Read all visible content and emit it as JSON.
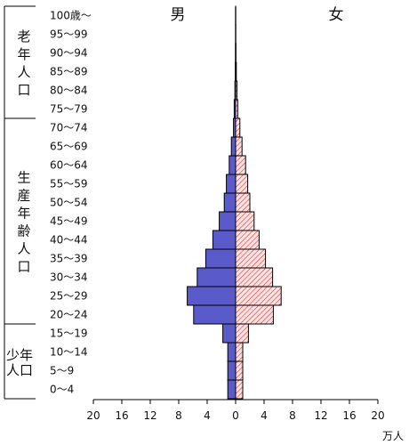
{
  "chart_data": {
    "type": "bar",
    "title": "",
    "header_left": "男",
    "header_right": "女",
    "xlabel": "万人",
    "x_ticks": [
      "20",
      "16",
      "12",
      "8",
      "4",
      "0",
      "4",
      "8",
      "12",
      "16",
      "20"
    ],
    "xlim": [
      -20,
      20
    ],
    "categories": [
      "0～4",
      "5～9",
      "10～14",
      "15～19",
      "20～24",
      "25～29",
      "30～34",
      "35～39",
      "40～44",
      "45～49",
      "50～54",
      "55～59",
      "60～64",
      "65～69",
      "70～74",
      "75～79",
      "80～84",
      "85～89",
      "90～94",
      "95～99",
      "100歳～"
    ],
    "series": [
      {
        "name": "男",
        "color": "#5a5acb",
        "values": [
          1.1,
          1.1,
          1.1,
          1.8,
          5.9,
          6.8,
          5.4,
          4.2,
          3.2,
          2.3,
          1.6,
          1.3,
          0.9,
          0.6,
          0.3,
          0.2,
          0.1,
          0.05,
          0.02,
          0.01,
          0.01
        ]
      },
      {
        "name": "女",
        "color": "#e06666",
        "values": [
          1.0,
          1.0,
          1.0,
          1.8,
          5.3,
          6.4,
          5.2,
          4.2,
          3.3,
          2.6,
          2.0,
          1.7,
          1.4,
          0.9,
          0.6,
          0.3,
          0.2,
          0.1,
          0.05,
          0.02,
          0.01
        ]
      }
    ],
    "groups": [
      {
        "label": "老年人口",
        "from": 15,
        "to": 20
      },
      {
        "label": "生産年齢人口",
        "from": 4,
        "to": 14
      },
      {
        "label": "年少人口",
        "from": 0,
        "to": 3
      }
    ]
  }
}
